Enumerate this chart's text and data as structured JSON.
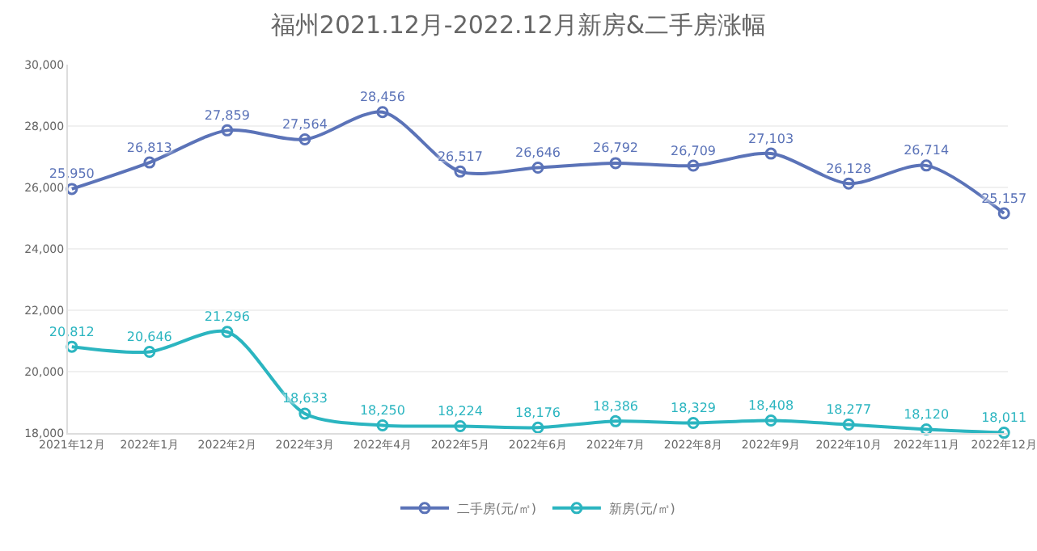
{
  "chart_data": {
    "type": "line",
    "title": "福州2021.12月-2022.12月新房&二手房涨幅",
    "categories": [
      "2021年12月",
      "2022年1月",
      "2022年2月",
      "2022年3月",
      "2022年4月",
      "2022年5月",
      "2022年6月",
      "2022年7月",
      "2022年8月",
      "2022年9月",
      "2022年10月",
      "2022年11月",
      "2022年12月"
    ],
    "series": [
      {
        "name": "二手房(元/㎡)",
        "color": "#5b73b8",
        "values": [
          25950,
          26813,
          27859,
          27564,
          28456,
          26517,
          26646,
          26792,
          26709,
          27103,
          26128,
          26714,
          25157
        ],
        "value_labels": [
          "25,950",
          "26,813",
          "27,859",
          "27,564",
          "28,456",
          "26,517",
          "26,646",
          "26,792",
          "26,709",
          "27,103",
          "26,128",
          "26,714",
          "25,157"
        ]
      },
      {
        "name": "新房(元/㎡)",
        "color": "#2bb5c0",
        "values": [
          20812,
          20646,
          21296,
          18633,
          18250,
          18224,
          18176,
          18386,
          18329,
          18408,
          18277,
          18120,
          18011
        ],
        "value_labels": [
          "20,812",
          "20,646",
          "21,296",
          "18,633",
          "18,250",
          "18,224",
          "18,176",
          "18,386",
          "18,329",
          "18,408",
          "18,277",
          "18,120",
          "18,011"
        ]
      }
    ],
    "ylim": [
      18000,
      30000
    ],
    "yticks": [
      {
        "value": 18000,
        "label": "18,000"
      },
      {
        "value": 20000,
        "label": "20,000"
      },
      {
        "value": 22000,
        "label": "22,000"
      },
      {
        "value": 24000,
        "label": "24,000"
      },
      {
        "value": 26000,
        "label": "26,000"
      },
      {
        "value": 28000,
        "label": "28,000"
      },
      {
        "value": 30000,
        "label": "30,000"
      }
    ],
    "grid": "y",
    "legend": "bottom",
    "marker": "circle",
    "line_style": "solid"
  }
}
